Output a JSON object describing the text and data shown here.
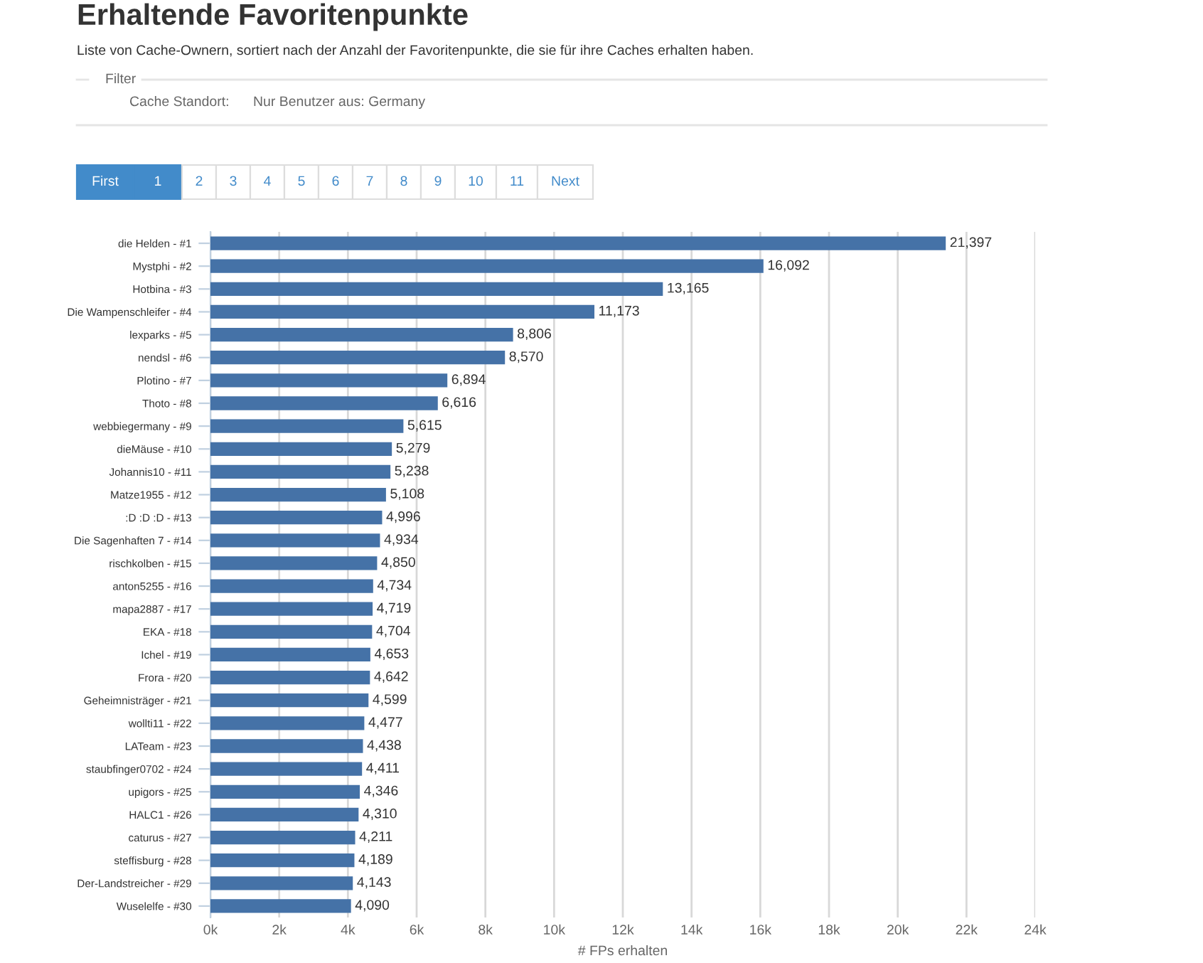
{
  "chart_data": {
    "type": "bar",
    "orientation": "horizontal",
    "title": "Erhaltende Favoritenpunkte",
    "subtitle": "Liste von Cache-Ownern, sortiert nach der Anzahl der Favoritenpunkte, die sie für ihre Caches erhalten haben.",
    "annotations": [
      "Filter",
      "Cache Standort:",
      "Nur Benutzer aus: Germany",
      "First",
      "1",
      "2",
      "3",
      "4",
      "5",
      "6",
      "7",
      "8",
      "9",
      "10",
      "11",
      "Next"
    ],
    "categories": [
      "die Helden - #1",
      "Mystphi - #2",
      "Hotbina - #3",
      "Die Wampenschleifer - #4",
      "lexparks - #5",
      "nendsl - #6",
      "Plotino - #7",
      "Thoto - #8",
      "webbiegermany - #9",
      "dieMäuse - #10",
      "Johannis10 - #11",
      "Matze1955 - #12",
      ":D :D :D - #13",
      "Die Sagenhaften 7 - #14",
      "rischkolben - #15",
      "anton5255 - #16",
      "mapa2887 - #17",
      "EKA - #18",
      "Ichel - #19",
      "Frora - #20",
      "Geheimnisträger - #21",
      "wollti11 - #22",
      "LATeam - #23",
      "staubfinger0702 - #24",
      "upigors - #25",
      "HALC1 - #26",
      "caturus - #27",
      "steffisburg - #28",
      "Der-Landstreicher - #29",
      "Wuselelfe - #30"
    ],
    "series": [
      {
        "color": "#4572a7",
        "values": [
          21397,
          16092,
          13165,
          11173,
          8806,
          8570,
          6894,
          6616,
          5615,
          5279,
          5238,
          5108,
          4996,
          4934,
          4850,
          4734,
          4719,
          4704,
          4653,
          4642,
          4599,
          4477,
          4438,
          4411,
          4346,
          4310,
          4211,
          4189,
          4143,
          4090
        ],
        "value_labels": [
          "21,397",
          "16,092",
          "13,165",
          "11,173",
          "8,806",
          "8,570",
          "6,894",
          "6,616",
          "5,615",
          "5,279",
          "5,238",
          "5,108",
          "4,996",
          "4,934",
          "4,850",
          "4,734",
          "4,719",
          "4,704",
          "4,653",
          "4,642",
          "4,599",
          "4,477",
          "4,438",
          "4,411",
          "4,346",
          "4,310",
          "4,211",
          "4,189",
          "4,143",
          "4,090"
        ]
      }
    ],
    "xlabel": "# FPs erhalten",
    "xlim": [
      0,
      24000
    ],
    "xticks": [
      {
        "value": 0,
        "label": "0k"
      },
      {
        "value": 2000,
        "label": "2k"
      },
      {
        "value": 4000,
        "label": "4k"
      },
      {
        "value": 6000,
        "label": "6k"
      },
      {
        "value": 8000,
        "label": "8k"
      },
      {
        "value": 10000,
        "label": "10k"
      },
      {
        "value": 12000,
        "label": "12k"
      },
      {
        "value": 14000,
        "label": "14k"
      },
      {
        "value": 16000,
        "label": "16k"
      },
      {
        "value": 18000,
        "label": "18k"
      },
      {
        "value": 20000,
        "label": "20k"
      },
      {
        "value": 22000,
        "label": "22k"
      },
      {
        "value": 24000,
        "label": "24k"
      }
    ],
    "grid": "x"
  }
}
